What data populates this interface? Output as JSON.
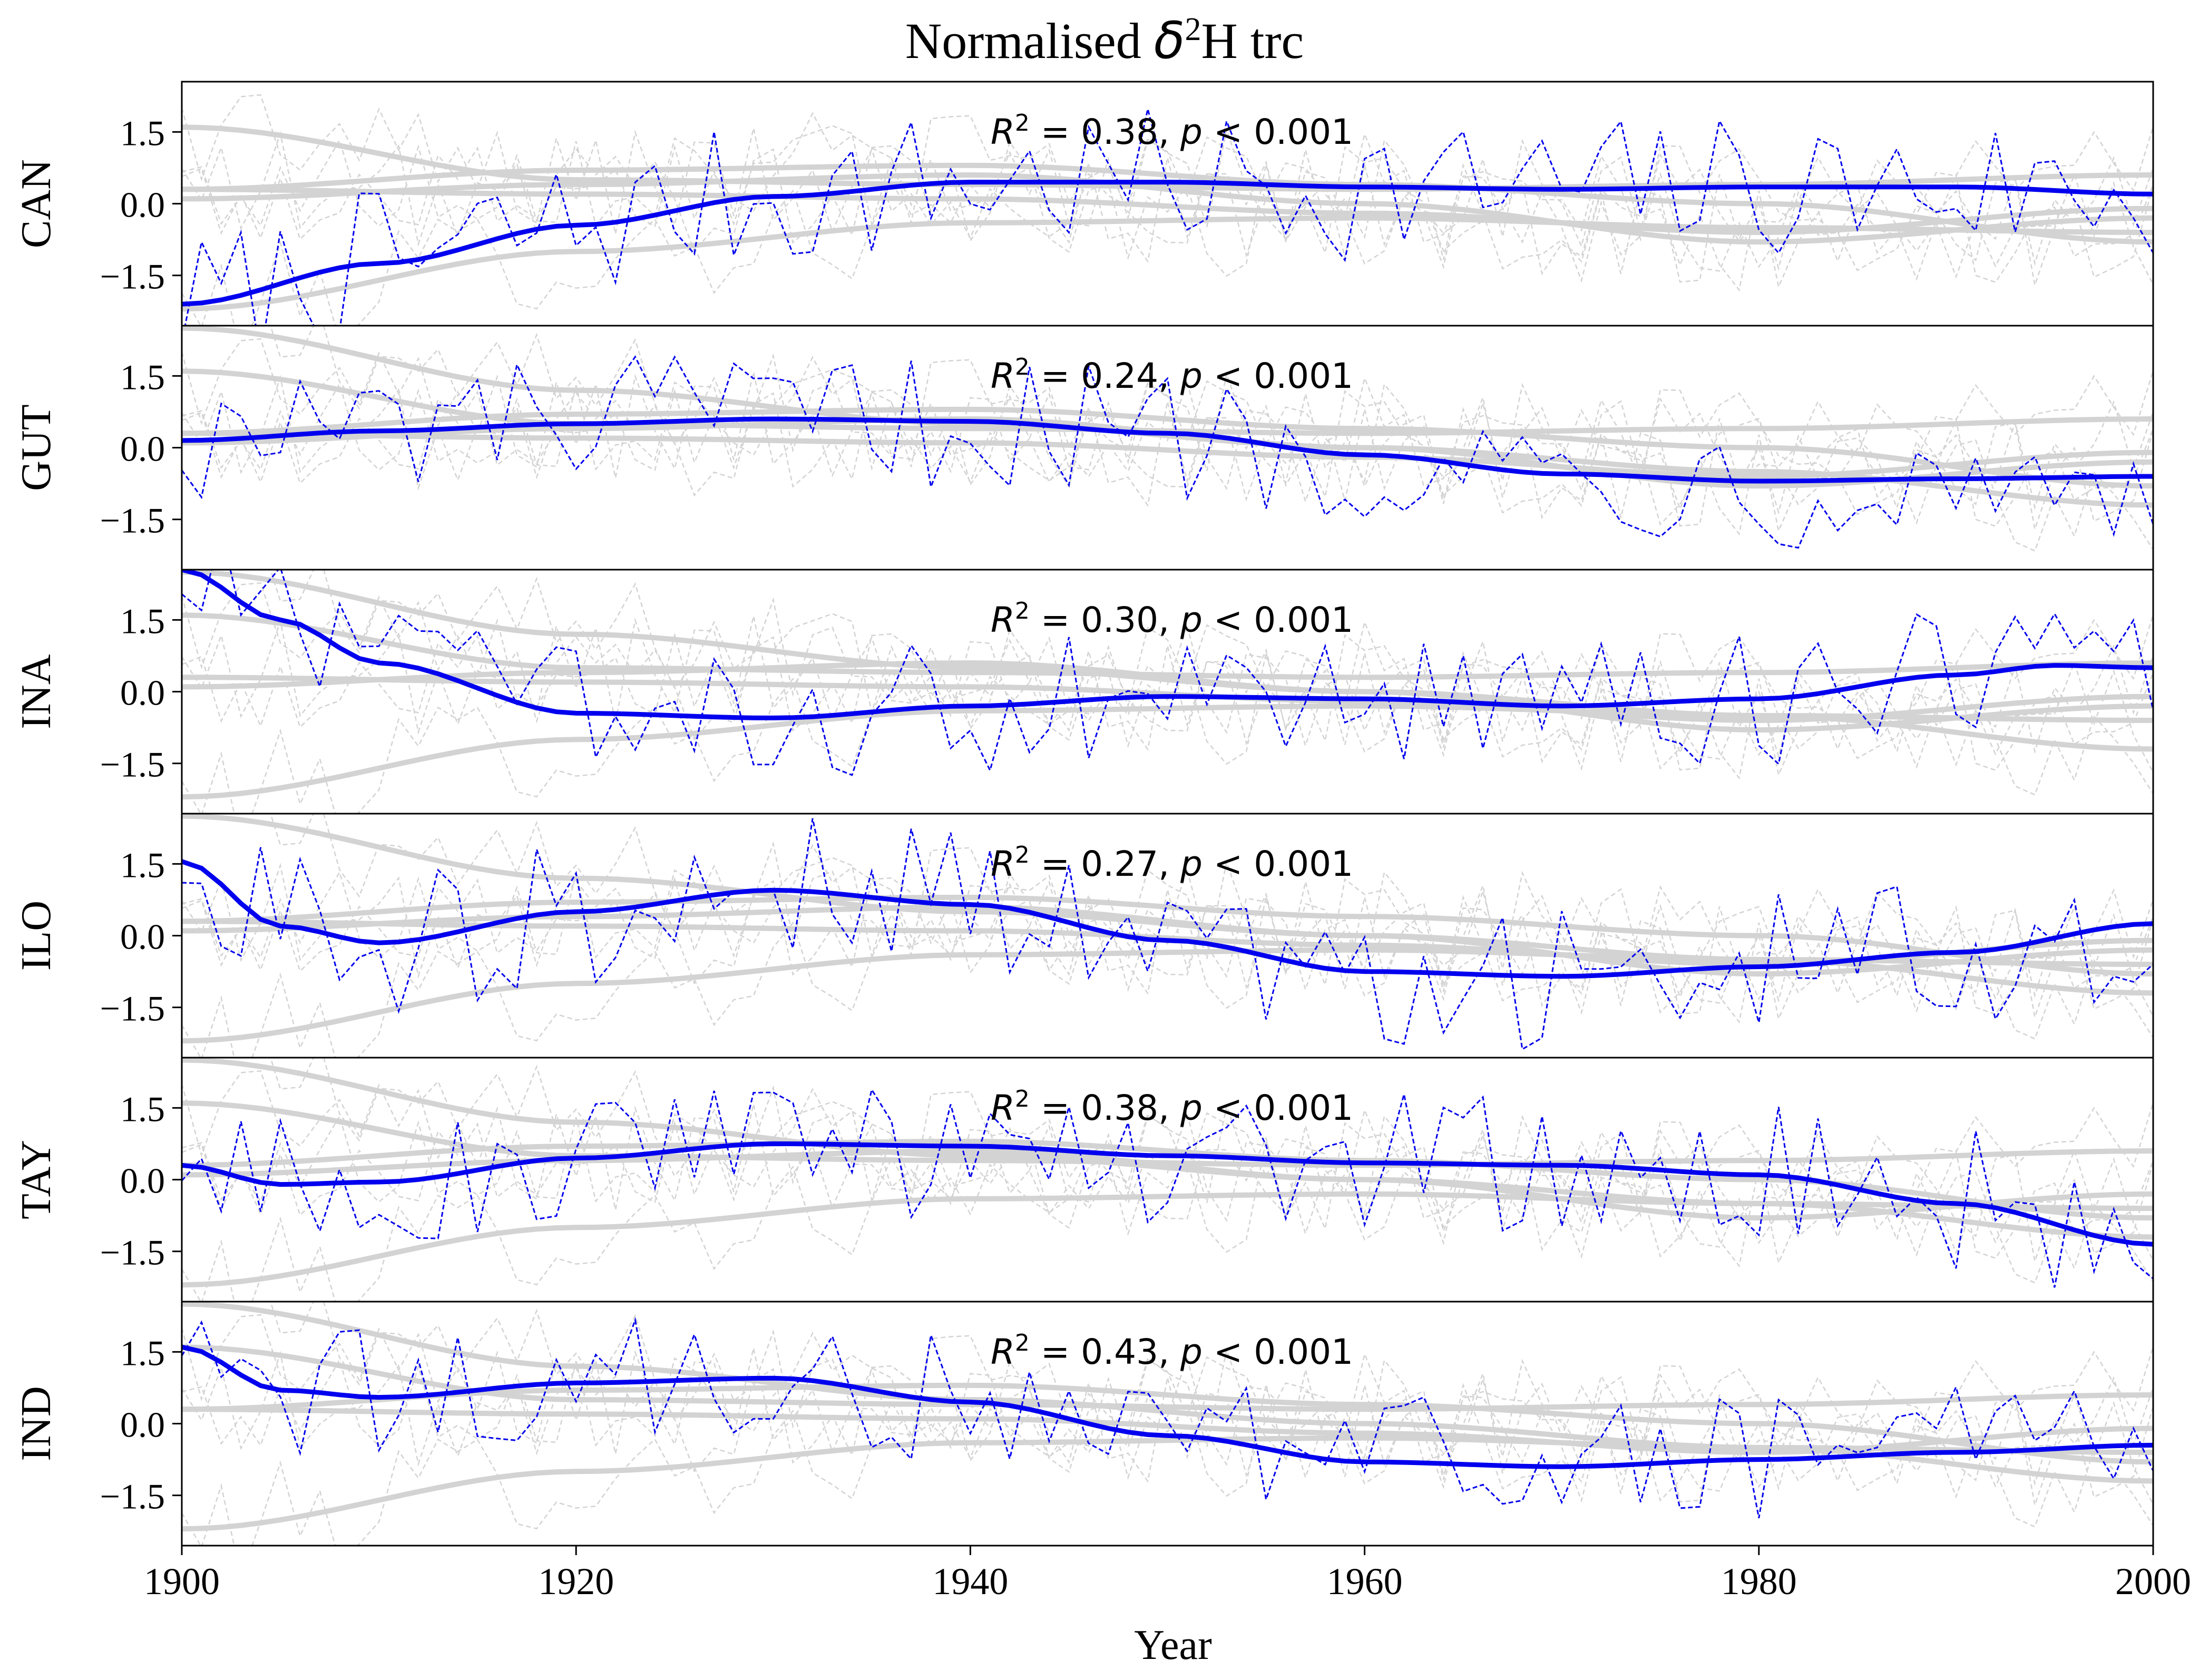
{
  "title": {
    "prefix": "Normalised ",
    "symbol": "δ",
    "sup": "2",
    "suffix": "H trc"
  },
  "xlabel": "Year",
  "xticks": [
    "1900",
    "1920",
    "1940",
    "1960",
    "1980",
    "2000"
  ],
  "yticks": [
    "1.5",
    "0.0",
    "−1.5"
  ],
  "colors": {
    "highlight": "#0000ee",
    "background": "#d3d3d3",
    "frame": "#000000"
  },
  "chart_data": {
    "type": "line",
    "xlim": [
      1900,
      2000
    ],
    "ylim": [
      -2.55,
      2.55
    ],
    "grid": false,
    "panels": [
      {
        "label": "CAN",
        "stat_r2": "0.38",
        "stat_p": "0.001",
        "trend": {
          "x": [
            1900,
            1910,
            1920,
            1930,
            1940,
            1950,
            1960,
            1970,
            1980,
            1990,
            2000
          ],
          "y": [
            -2.1,
            -1.25,
            -0.45,
            0.15,
            0.45,
            0.45,
            0.35,
            0.3,
            0.35,
            0.35,
            0.2
          ]
        },
        "noise_amplitude": 1.1
      },
      {
        "label": "GUT",
        "stat_r2": "0.24",
        "stat_p": "0.001",
        "trend": {
          "x": [
            1900,
            1910,
            1920,
            1930,
            1940,
            1950,
            1960,
            1970,
            1980,
            1990,
            2000
          ],
          "y": [
            0.15,
            0.35,
            0.5,
            0.6,
            0.55,
            0.3,
            -0.15,
            -0.55,
            -0.7,
            -0.65,
            -0.6
          ]
        },
        "noise_amplitude": 1.0
      },
      {
        "label": "INA",
        "stat_r2": "0.30",
        "stat_p": "0.001",
        "trend": {
          "x": [
            1900,
            1905,
            1910,
            1920,
            1930,
            1940,
            1950,
            1960,
            1970,
            1980,
            1990,
            1995,
            2000
          ],
          "y": [
            2.55,
            1.5,
            0.6,
            -0.45,
            -0.55,
            -0.3,
            -0.1,
            -0.15,
            -0.3,
            -0.15,
            0.35,
            0.55,
            0.5
          ]
        },
        "noise_amplitude": 1.0
      },
      {
        "label": "ILO",
        "stat_r2": "0.27",
        "stat_p": "0.001",
        "trend": {
          "x": [
            1900,
            1905,
            1910,
            1920,
            1930,
            1940,
            1950,
            1960,
            1970,
            1980,
            1990,
            2000
          ],
          "y": [
            1.55,
            0.2,
            -0.15,
            0.5,
            0.95,
            0.65,
            -0.1,
            -0.75,
            -0.85,
            -0.65,
            -0.35,
            0.25
          ]
        },
        "noise_amplitude": 1.1
      },
      {
        "label": "TAY",
        "stat_r2": "0.38",
        "stat_p": "0.001",
        "trend": {
          "x": [
            1900,
            1905,
            1910,
            1920,
            1930,
            1940,
            1950,
            1960,
            1970,
            1980,
            1990,
            2000
          ],
          "y": [
            0.3,
            -0.1,
            -0.05,
            0.45,
            0.75,
            0.7,
            0.5,
            0.35,
            0.3,
            0.1,
            -0.5,
            -1.35
          ]
        },
        "noise_amplitude": 1.1
      },
      {
        "label": "IND",
        "stat_r2": "0.43",
        "stat_p": "0.001",
        "trend": {
          "x": [
            1900,
            1905,
            1910,
            1920,
            1930,
            1940,
            1950,
            1960,
            1970,
            1980,
            1990,
            2000
          ],
          "y": [
            1.6,
            0.7,
            0.55,
            0.85,
            0.95,
            0.45,
            -0.25,
            -0.8,
            -0.9,
            -0.75,
            -0.6,
            -0.45
          ]
        },
        "noise_amplitude": 1.0
      }
    ],
    "background_trends": [
      {
        "x": [
          1900,
          1920,
          1940,
          1960,
          1980,
          2000
        ],
        "y": [
          2.5,
          1.2,
          0.5,
          0.0,
          -0.5,
          -1.2
        ]
      },
      {
        "x": [
          1900,
          1920,
          1940,
          1960,
          1980,
          2000
        ],
        "y": [
          -2.2,
          -1.0,
          -0.4,
          -0.3,
          -0.5,
          -0.6
        ]
      },
      {
        "x": [
          1900,
          1920,
          1940,
          1960,
          1980,
          2000
        ],
        "y": [
          0.3,
          0.7,
          0.8,
          0.4,
          0.0,
          -0.8
        ]
      },
      {
        "x": [
          1900,
          1920,
          1940,
          1960,
          1980,
          2000
        ],
        "y": [
          1.6,
          0.5,
          0.4,
          0.3,
          0.4,
          0.6
        ]
      },
      {
        "x": [
          1900,
          1920,
          1940,
          1960,
          1980,
          2000
        ],
        "y": [
          0.3,
          0.2,
          0.1,
          -0.2,
          -0.6,
          -0.1
        ]
      },
      {
        "x": [
          1900,
          1920,
          1940,
          1960,
          1980,
          2000
        ],
        "y": [
          0.1,
          0.4,
          0.6,
          0.0,
          -0.8,
          -0.3
        ]
      }
    ]
  }
}
